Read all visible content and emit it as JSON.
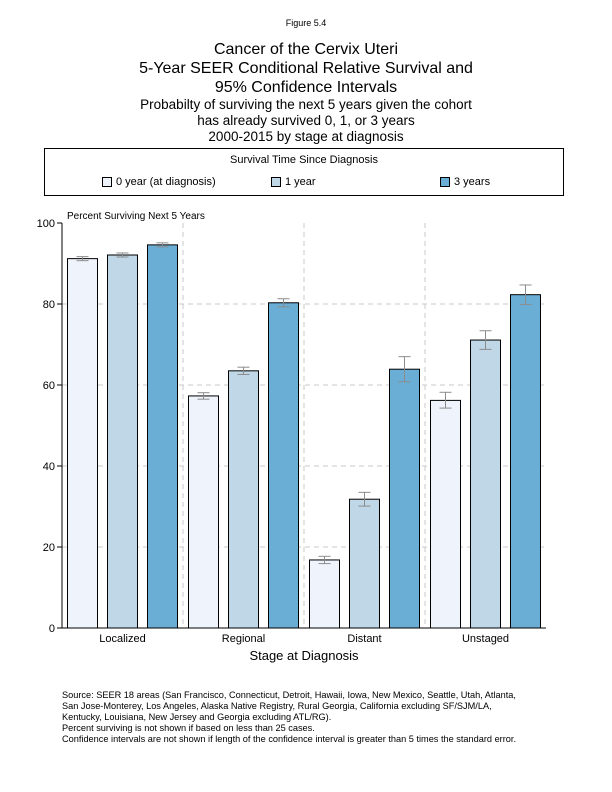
{
  "figure_label": "Figure 5.4",
  "title_lines": [
    "Cancer of the Cervix Uteri",
    "5-Year SEER Conditional Relative Survival and",
    "95% Confidence Intervals"
  ],
  "subtitle_lines": [
    "Probabilty of surviving the next 5 years given the cohort",
    "has already survived 0, 1, or 3 years",
    "2000-2015 by stage at diagnosis"
  ],
  "legend": {
    "title": "Survival Time Since Diagnosis",
    "items": [
      {
        "label": "0 year (at diagnosis)",
        "color": "#eef3fc"
      },
      {
        "label": "1 year",
        "color": "#bfd7e6"
      },
      {
        "label": "3 years",
        "color": "#6aaed6"
      }
    ]
  },
  "chart_data": {
    "type": "bar",
    "title": "",
    "ylabel": "Percent Surviving Next 5 Years",
    "xlabel": "Stage at Diagnosis",
    "categories": [
      "Localized",
      "Regional",
      "Distant",
      "Unstaged"
    ],
    "ylim": [
      0,
      100
    ],
    "yticks": [
      0,
      20,
      40,
      60,
      80,
      100
    ],
    "series": [
      {
        "name": "0 year (at diagnosis)",
        "values": [
          91.2,
          57.3,
          16.8,
          56.2
        ],
        "ci_low": [
          90.7,
          56.5,
          15.9,
          54.3
        ],
        "ci_high": [
          91.7,
          58.1,
          17.7,
          58.2
        ]
      },
      {
        "name": "1 year",
        "values": [
          92.1,
          63.5,
          31.8,
          71.1
        ],
        "ci_low": [
          91.6,
          62.6,
          30.1,
          68.8
        ],
        "ci_high": [
          92.6,
          64.4,
          33.5,
          73.4
        ]
      },
      {
        "name": "3 years",
        "values": [
          94.6,
          80.3,
          63.9,
          82.3
        ],
        "ci_low": [
          94.1,
          79.3,
          60.8,
          79.9
        ],
        "ci_high": [
          95.1,
          81.3,
          67.0,
          84.7
        ]
      }
    ],
    "grid": true
  },
  "source_lines": [
    "Source:  SEER 18 areas (San Francisco, Connecticut, Detroit, Hawaii, Iowa, New Mexico, Seattle, Utah, Atlanta,",
    "San Jose-Monterey, Los Angeles, Alaska Native Registry, Rural Georgia, California excluding SF/SJM/LA,",
    "Kentucky, Louisiana, New Jersey and Georgia excluding ATL/RG).",
    "Percent surviving is not shown if based on less than 25 cases.",
    "Confidence intervals are not shown if length of the confidence interval is greater than 5 times the standard error."
  ]
}
